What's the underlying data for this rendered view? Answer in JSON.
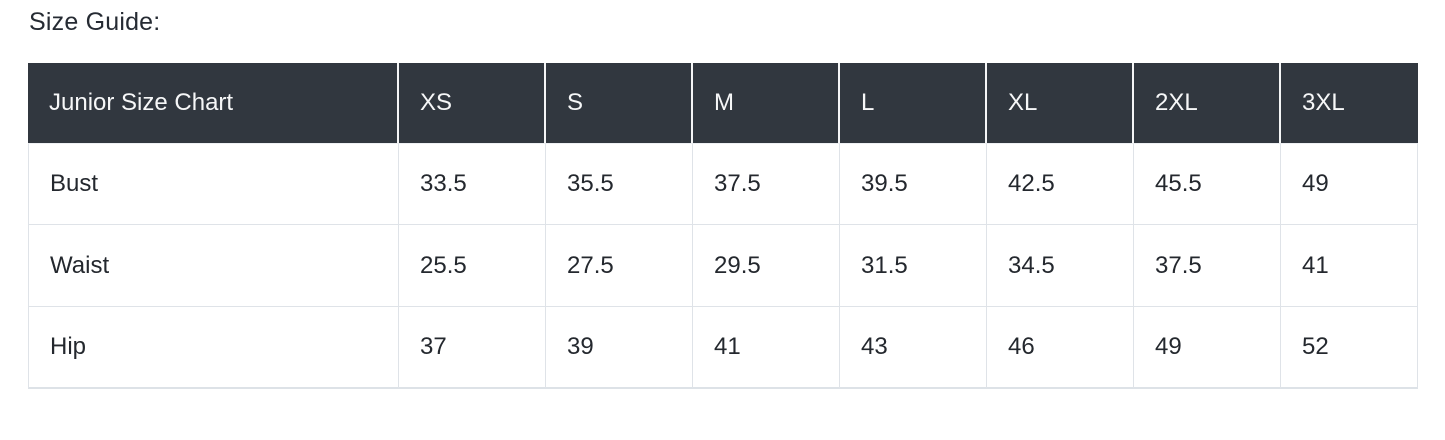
{
  "page": {
    "title": "Size Guide:"
  },
  "size_table": {
    "header": [
      "Junior Size Chart",
      "XS",
      "S",
      "M",
      "L",
      "XL",
      "2XL",
      "3XL"
    ],
    "rows": [
      {
        "label": "Bust",
        "values": [
          "33.5",
          "35.5",
          "37.5",
          "39.5",
          "42.5",
          "45.5",
          "49"
        ]
      },
      {
        "label": "Waist",
        "values": [
          "25.5",
          "27.5",
          "29.5",
          "31.5",
          "34.5",
          "37.5",
          "41"
        ]
      },
      {
        "label": "Hip",
        "values": [
          "37",
          "39",
          "41",
          "43",
          "46",
          "49",
          "52"
        ]
      }
    ],
    "colors": {
      "header_bg": "#31373f",
      "header_text": "#f6f7f8",
      "body_text": "#24282e",
      "border": "#dfe3e8",
      "title_text": "#262b33"
    }
  }
}
